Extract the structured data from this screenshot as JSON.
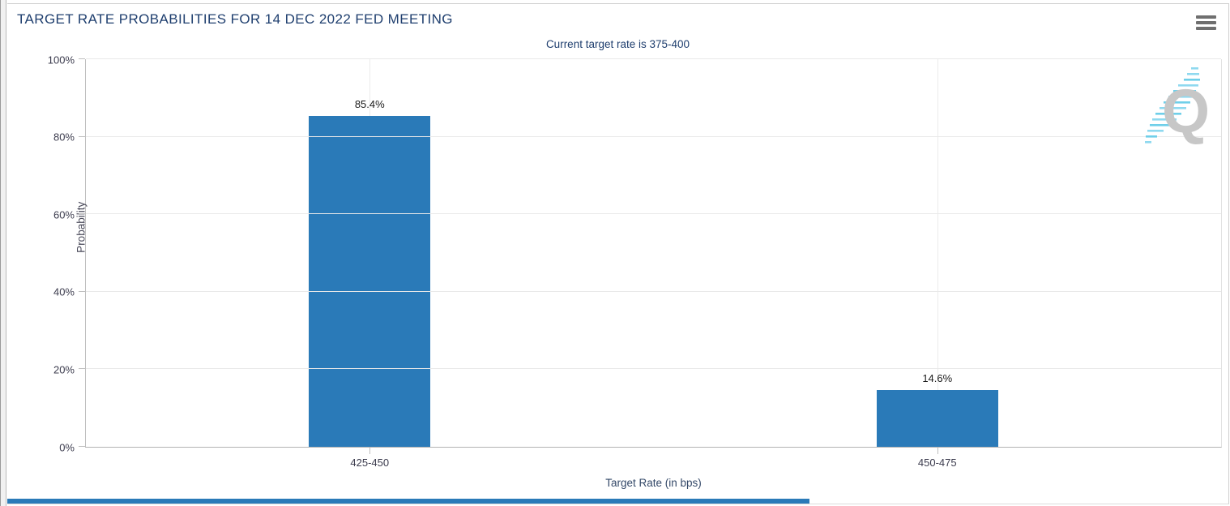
{
  "header": {
    "title": "TARGET RATE PROBABILITIES FOR 14 DEC 2022 FED MEETING",
    "menu_icon": "hamburger-icon"
  },
  "chart_data": {
    "type": "bar",
    "title": "Current target rate is 375-400",
    "categories": [
      "425-450",
      "450-475"
    ],
    "values": [
      85.4,
      14.6
    ],
    "value_labels": [
      "85.4%",
      "14.6%"
    ],
    "xlabel": "Target Rate (in bps)",
    "ylabel": "Probability",
    "ylim": [
      0,
      100
    ],
    "yticks": [
      0,
      20,
      40,
      60,
      80,
      100
    ],
    "ytick_labels": [
      "0%",
      "20%",
      "40%",
      "60%",
      "80%",
      "100%"
    ],
    "grid": true,
    "legend": "none",
    "bar_color": "#2a7ab8"
  },
  "watermark": {
    "letter": "Q"
  },
  "colors": {
    "bar": "#2a7ab8",
    "title_text": "#1e3e6e",
    "axis_text": "#3c3c4e",
    "grid": "#e9e9e9",
    "axis_line": "#bfbfbf",
    "footer_bar": "#2a7ab8"
  }
}
